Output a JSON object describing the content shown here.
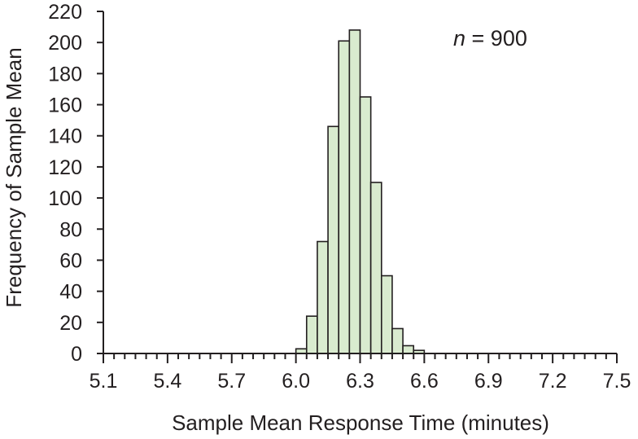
{
  "chart_data": {
    "type": "bar",
    "title": "",
    "xlabel": "Sample Mean Response Time (minutes)",
    "ylabel": "Frequency of Sample Mean",
    "annotation_var": "n",
    "annotation_rest": " = 900",
    "xlim": [
      5.1,
      7.5
    ],
    "ylim": [
      0,
      220
    ],
    "xticks": [
      "5.1",
      "5.4",
      "5.7",
      "6.0",
      "6.3",
      "6.6",
      "6.9",
      "7.2",
      "7.5"
    ],
    "yticks": [
      "0",
      "20",
      "40",
      "60",
      "80",
      "100",
      "120",
      "140",
      "160",
      "180",
      "200",
      "220"
    ],
    "grid": false,
    "bin_width": 0.05,
    "bins": [
      {
        "start": 6.0,
        "count": 3
      },
      {
        "start": 6.05,
        "count": 24
      },
      {
        "start": 6.1,
        "count": 72
      },
      {
        "start": 6.15,
        "count": 146
      },
      {
        "start": 6.2,
        "count": 201
      },
      {
        "start": 6.25,
        "count": 208
      },
      {
        "start": 6.3,
        "count": 165
      },
      {
        "start": 6.35,
        "count": 110
      },
      {
        "start": 6.4,
        "count": 50
      },
      {
        "start": 6.45,
        "count": 16
      },
      {
        "start": 6.5,
        "count": 5
      },
      {
        "start": 6.55,
        "count": 2
      }
    ],
    "colors": {
      "bar_fill": "#d9ebcf",
      "bar_stroke": "#231f20"
    }
  }
}
